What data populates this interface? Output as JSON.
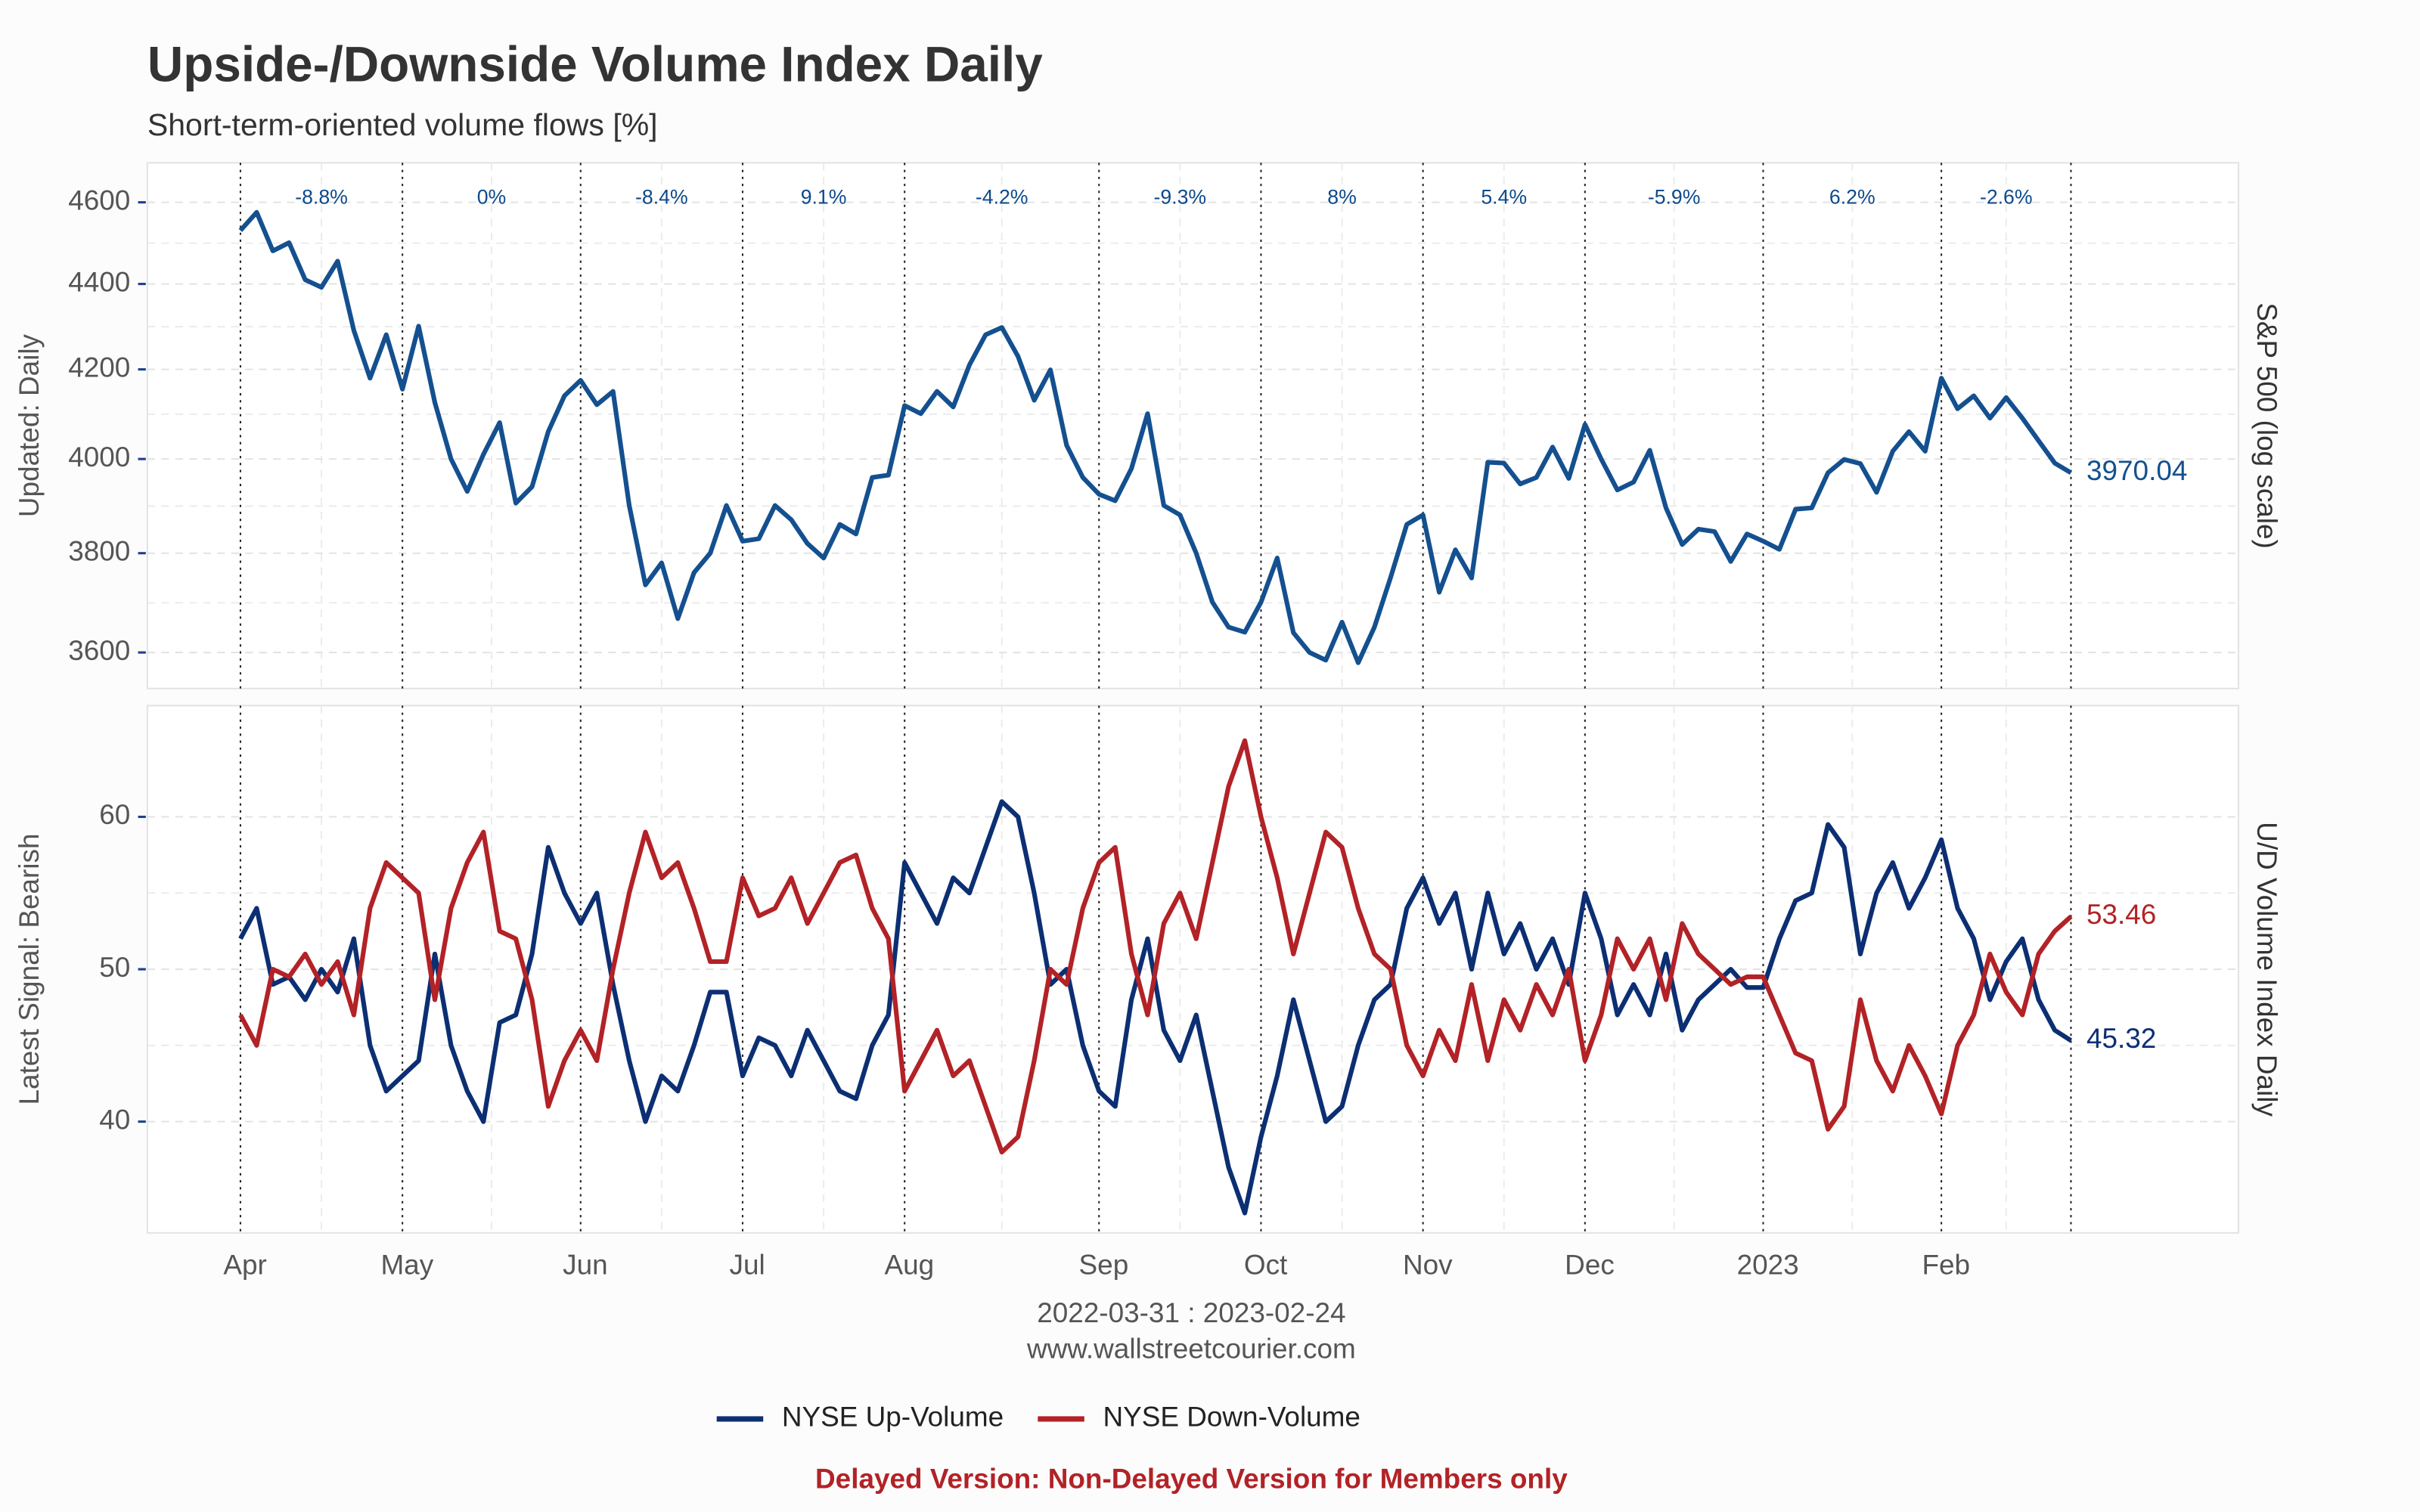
{
  "title": "Upside-/Downside Volume Index Daily",
  "subtitle": "Short-term-oriented volume flows [%]",
  "date_range": "2022-03-31 : 2023-02-24",
  "source": "www.wallstreetcourier.com",
  "notice": "Delayed Version: Non-Delayed Version for Members only",
  "chart_data": [
    {
      "type": "line",
      "log": true,
      "ylabel": "Updated: Daily",
      "right_label": "S&P 500 (log scale)",
      "ylim": [
        3530,
        4700
      ],
      "yticks": [
        3600,
        3800,
        4000,
        4200,
        4400,
        4600
      ],
      "grid": true,
      "color": "#14508f",
      "annotations": [
        "-8.8%",
        "0%",
        "-8.4%",
        "9.1%",
        "-4.2%",
        "-9.3%",
        "8%",
        "5.4%",
        "-5.9%",
        "6.2%",
        "-2.6%"
      ],
      "values": [
        4530,
        4575,
        4480,
        4500,
        4410,
        4392,
        4455,
        4290,
        4180,
        4280,
        4155,
        4300,
        4125,
        4000,
        3930,
        4010,
        4080,
        3905,
        3940,
        4060,
        4140,
        4175,
        4120,
        4150,
        3900,
        3735,
        3780,
        3667,
        3760,
        3800,
        3900,
        3825,
        3830,
        3900,
        3870,
        3820,
        3790,
        3860,
        3840,
        3960,
        3965,
        4118,
        4100,
        4150,
        4115,
        4210,
        4280,
        4297,
        4230,
        4130,
        4199,
        4030,
        3960,
        3924,
        3910,
        3979,
        4100,
        3900,
        3880,
        3800,
        3700,
        3650,
        3640,
        3700,
        3790,
        3639,
        3600,
        3585,
        3660,
        3580,
        3650,
        3750,
        3860,
        3880,
        3720,
        3807,
        3749,
        3993,
        3991,
        3946,
        3960,
        4026,
        3958,
        4076,
        4000,
        3933,
        3950,
        4019,
        3895,
        3818,
        3850,
        3845,
        3783,
        3840,
        3825,
        3808,
        3892,
        3895,
        3970,
        3999,
        3990,
        3928,
        4017,
        4060,
        4017,
        4180,
        4111,
        4140,
        4090,
        4136,
        4090,
        4040,
        3991,
        3970.04
      ]
    },
    {
      "type": "line",
      "ylabel": "Latest Signal: Bearish",
      "right_label": "U/D Volume Index Daily",
      "ylim": [
        32.7,
        67.3
      ],
      "yticks": [
        40,
        50,
        60
      ],
      "grid": true,
      "categories": [
        "Apr",
        null,
        null,
        null,
        null,
        null,
        null,
        null,
        null,
        null,
        "May",
        null,
        null,
        null,
        null,
        null,
        null,
        null,
        null,
        null,
        null,
        "Jun",
        null,
        null,
        null,
        null,
        null,
        null,
        null,
        null,
        null,
        "Jul",
        null,
        null,
        null,
        null,
        null,
        null,
        null,
        null,
        null,
        "Aug",
        null,
        null,
        null,
        null,
        null,
        null,
        null,
        null,
        null,
        null,
        null,
        "Sep",
        null,
        null,
        null,
        null,
        null,
        null,
        null,
        null,
        null,
        "Oct",
        null,
        null,
        null,
        null,
        null,
        null,
        null,
        null,
        null,
        "Nov",
        null,
        null,
        null,
        null,
        null,
        null,
        null,
        null,
        null,
        "Dec",
        null,
        null,
        null,
        null,
        null,
        null,
        null,
        null,
        null,
        null,
        "2023",
        null,
        null,
        null,
        null,
        null,
        null,
        null,
        null,
        null,
        null,
        "Feb",
        null,
        null,
        null,
        null,
        null,
        null,
        null,
        null
      ],
      "series": [
        {
          "name": "NYSE Up-Volume",
          "color": "#0c2f73",
          "values": [
            52,
            54,
            49,
            49.5,
            48,
            50,
            48.5,
            52,
            45,
            42,
            43,
            44,
            51,
            45,
            42,
            40,
            46.5,
            47,
            51,
            58,
            55,
            53,
            55,
            49,
            44,
            40,
            43,
            42,
            45,
            48.5,
            48.5,
            43,
            45.5,
            45,
            43,
            46,
            44,
            42,
            41.5,
            45,
            47,
            57,
            55,
            53,
            56,
            55,
            58,
            61,
            60,
            55,
            49,
            50,
            45,
            42,
            41,
            48,
            52,
            46,
            44,
            47,
            42,
            37,
            34,
            39,
            43,
            48,
            44,
            40,
            41,
            45,
            48,
            49,
            54,
            56,
            53,
            55,
            50,
            55,
            51,
            53,
            50,
            52,
            49,
            55,
            52,
            47,
            49,
            47,
            51,
            46,
            48,
            49,
            50,
            48.8,
            48.8,
            52,
            54.5,
            55,
            59.5,
            58,
            51,
            55,
            57,
            54,
            56,
            58.5,
            54,
            52,
            48,
            50.5,
            52,
            48,
            46,
            45.32
          ]
        },
        {
          "name": "NYSE Down-Volume",
          "color": "#b22226",
          "values": [
            47,
            45,
            50,
            49.5,
            51,
            49,
            50.5,
            47,
            54,
            57,
            56,
            55,
            48,
            54,
            57,
            59,
            52.5,
            52,
            48,
            41,
            44,
            46,
            44,
            50,
            55,
            59,
            56,
            57,
            54,
            50.5,
            50.5,
            56,
            53.5,
            54,
            56,
            53,
            55,
            57,
            57.5,
            54,
            52,
            42,
            44,
            46,
            43,
            44,
            41,
            38,
            39,
            44,
            50,
            49,
            54,
            57,
            58,
            51,
            47,
            53,
            55,
            52,
            57,
            62,
            65,
            60,
            56,
            51,
            55,
            59,
            58,
            54,
            51,
            50,
            45,
            43,
            46,
            44,
            49,
            44,
            48,
            46,
            49,
            47,
            50,
            44,
            47,
            52,
            50,
            52,
            48,
            53,
            51,
            50,
            49,
            49.5,
            49.5,
            47,
            44.5,
            44,
            39.5,
            41,
            48,
            44,
            42,
            45,
            43,
            40.5,
            45,
            47,
            51,
            48.5,
            47,
            51,
            52.5,
            53.46
          ]
        }
      ]
    }
  ]
}
